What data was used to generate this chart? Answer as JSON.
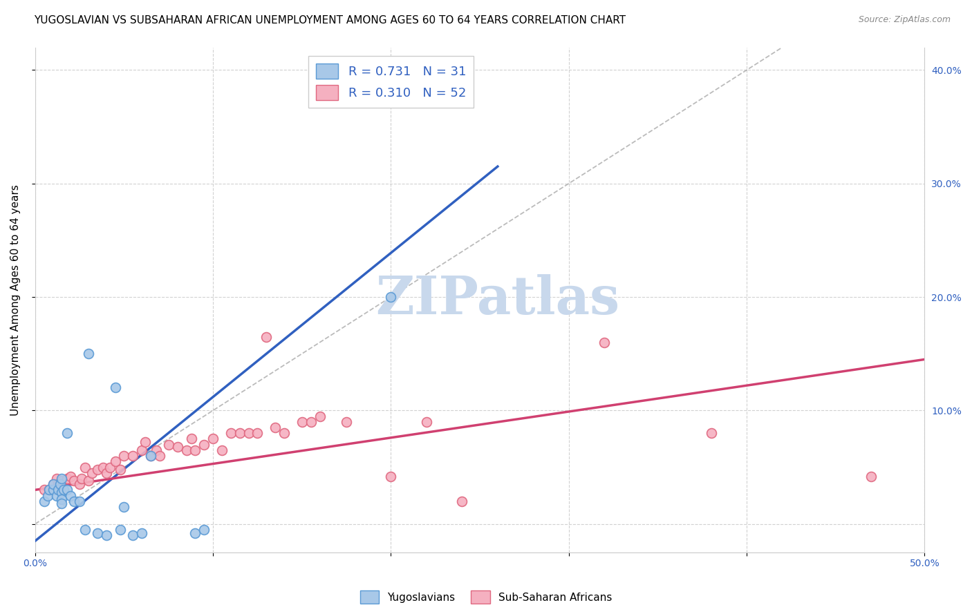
{
  "title": "YUGOSLAVIAN VS SUBSAHARAN AFRICAN UNEMPLOYMENT AMONG AGES 60 TO 64 YEARS CORRELATION CHART",
  "source": "Source: ZipAtlas.com",
  "ylabel": "Unemployment Among Ages 60 to 64 years",
  "xlim": [
    0.0,
    0.5
  ],
  "ylim": [
    -0.025,
    0.42
  ],
  "xtick_positions": [
    0.0,
    0.1,
    0.2,
    0.3,
    0.4,
    0.5
  ],
  "xtick_labels": [
    "0.0%",
    "",
    "",
    "",
    "",
    "50.0%"
  ],
  "ytick_positions": [
    0.0,
    0.1,
    0.2,
    0.3,
    0.4
  ],
  "ytick_right_labels": [
    "",
    "10.0%",
    "20.0%",
    "30.0%",
    "40.0%"
  ],
  "blue_fill": "#A8C8E8",
  "blue_edge": "#5A9AD5",
  "pink_fill": "#F5B0C0",
  "pink_edge": "#E06880",
  "blue_line_color": "#3060C0",
  "pink_line_color": "#D04070",
  "legend_R1": "R = 0.731",
  "legend_N1": "N = 31",
  "legend_R2": "R = 0.310",
  "legend_N2": "N = 52",
  "watermark": "ZIPatlas",
  "blue_scatter_x": [
    0.005,
    0.007,
    0.008,
    0.01,
    0.01,
    0.012,
    0.013,
    0.014,
    0.015,
    0.015,
    0.015,
    0.015,
    0.016,
    0.018,
    0.018,
    0.02,
    0.022,
    0.025,
    0.028,
    0.03,
    0.035,
    0.04,
    0.045,
    0.048,
    0.05,
    0.055,
    0.06,
    0.065,
    0.09,
    0.095,
    0.2
  ],
  "blue_scatter_y": [
    0.02,
    0.025,
    0.03,
    0.03,
    0.035,
    0.025,
    0.03,
    0.035,
    0.04,
    0.028,
    0.022,
    0.018,
    0.03,
    0.03,
    0.08,
    0.025,
    0.02,
    0.02,
    -0.005,
    0.15,
    -0.008,
    -0.01,
    0.12,
    -0.005,
    0.015,
    -0.01,
    -0.008,
    0.06,
    -0.008,
    -0.005,
    0.2
  ],
  "pink_scatter_x": [
    0.005,
    0.008,
    0.01,
    0.012,
    0.013,
    0.015,
    0.018,
    0.02,
    0.022,
    0.025,
    0.026,
    0.028,
    0.03,
    0.032,
    0.035,
    0.038,
    0.04,
    0.042,
    0.045,
    0.048,
    0.05,
    0.055,
    0.06,
    0.062,
    0.065,
    0.068,
    0.07,
    0.075,
    0.08,
    0.085,
    0.088,
    0.09,
    0.095,
    0.1,
    0.105,
    0.11,
    0.115,
    0.12,
    0.125,
    0.13,
    0.135,
    0.14,
    0.15,
    0.155,
    0.16,
    0.175,
    0.2,
    0.22,
    0.24,
    0.32,
    0.38,
    0.47
  ],
  "pink_scatter_y": [
    0.03,
    0.03,
    0.035,
    0.04,
    0.035,
    0.038,
    0.04,
    0.042,
    0.038,
    0.035,
    0.04,
    0.05,
    0.038,
    0.045,
    0.048,
    0.05,
    0.045,
    0.05,
    0.055,
    0.048,
    0.06,
    0.06,
    0.065,
    0.072,
    0.06,
    0.065,
    0.06,
    0.07,
    0.068,
    0.065,
    0.075,
    0.065,
    0.07,
    0.075,
    0.065,
    0.08,
    0.08,
    0.08,
    0.08,
    0.165,
    0.085,
    0.08,
    0.09,
    0.09,
    0.095,
    0.09,
    0.042,
    0.09,
    0.02,
    0.16,
    0.08,
    0.042
  ],
  "blue_trend_x": [
    0.0,
    0.26
  ],
  "blue_trend_y": [
    -0.015,
    0.315
  ],
  "pink_trend_x": [
    0.0,
    0.5
  ],
  "pink_trend_y": [
    0.03,
    0.145
  ],
  "diag_line_x": [
    0.0,
    0.42
  ],
  "diag_line_y": [
    0.0,
    0.42
  ],
  "background_color": "#FFFFFF",
  "grid_color": "#CCCCCC",
  "title_fontsize": 11,
  "axis_label_fontsize": 11,
  "tick_fontsize": 10,
  "marker_size": 100,
  "watermark_color": "#C8D8EC",
  "watermark_fontsize": 55
}
